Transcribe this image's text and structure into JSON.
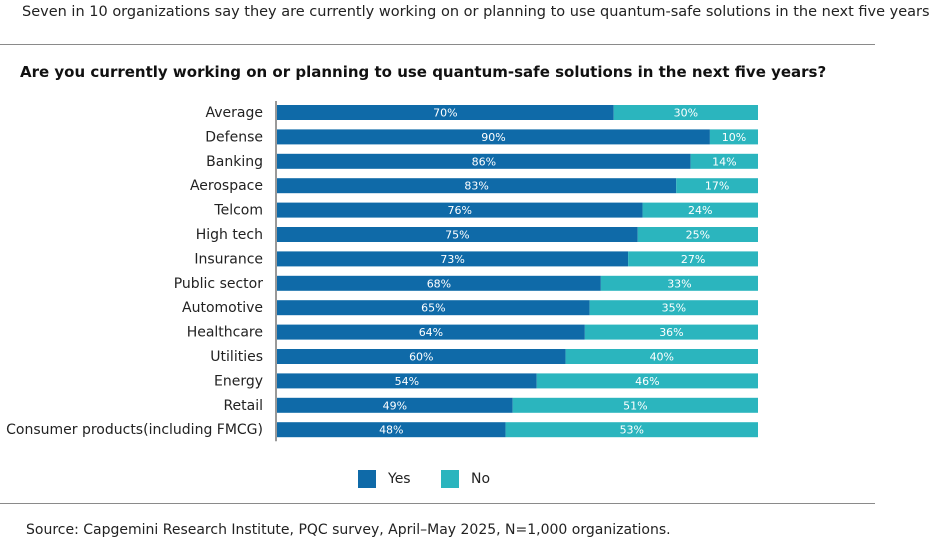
{
  "subtitle": "Seven in 10 organizations say they are currently working on or planning to use quantum-safe solutions in the next five years",
  "source": "Source: Capgemini Research Institute, PQC survey, April–May 2025, N=1,000 organizations.",
  "colors": {
    "yes": "#0f6aa8",
    "no": "#2bb5be",
    "label": "#ffffff"
  },
  "chart_data": {
    "type": "bar",
    "orientation": "horizontal",
    "stacked": true,
    "title": "Are you currently working on or planning to use quantum-safe solutions in the next five years?",
    "categories": [
      "Average",
      "Defense",
      "Banking",
      "Aerospace",
      "Telcom",
      "High tech",
      "Insurance",
      "Public sector",
      "Automotive",
      "Healthcare",
      "Utilities",
      "Energy",
      "Retail",
      "Consumer products(including FMCG)"
    ],
    "series": [
      {
        "name": "Yes",
        "values": [
          70,
          90,
          86,
          83,
          76,
          75,
          73,
          68,
          65,
          64,
          60,
          54,
          49,
          48
        ]
      },
      {
        "name": "No",
        "values": [
          30,
          10,
          14,
          17,
          24,
          25,
          27,
          33,
          35,
          36,
          40,
          46,
          51,
          53
        ]
      }
    ],
    "value_suffix": "%",
    "legend": [
      "Yes",
      "No"
    ],
    "legend_position": "bottom-center"
  }
}
